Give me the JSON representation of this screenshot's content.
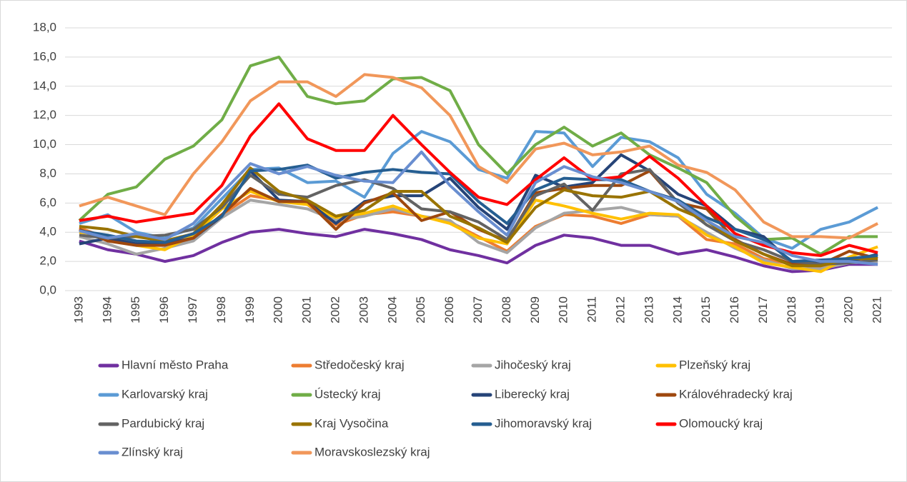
{
  "chart_data": {
    "type": "line",
    "categories": [
      "1993",
      "1994",
      "1995",
      "1996",
      "1997",
      "1998",
      "1999",
      "2000",
      "2001",
      "2002",
      "2003",
      "2004",
      "2005",
      "2006",
      "2007",
      "2008",
      "2009",
      "2010",
      "2011",
      "2012",
      "2013",
      "2014",
      "2015",
      "2016",
      "2017",
      "2018",
      "2019",
      "2020",
      "2021"
    ],
    "ylim": [
      0,
      18
    ],
    "yticks": [
      {
        "value": 0,
        "label": "0,0"
      },
      {
        "value": 2,
        "label": "2,0"
      },
      {
        "value": 4,
        "label": "4,0"
      },
      {
        "value": 6,
        "label": "6,0"
      },
      {
        "value": 8,
        "label": "8,0"
      },
      {
        "value": 10,
        "label": "10,0"
      },
      {
        "value": 12,
        "label": "12,0"
      },
      {
        "value": 14,
        "label": "14,0"
      },
      {
        "value": 16,
        "label": "16,0"
      },
      {
        "value": 18,
        "label": "18,0"
      }
    ],
    "grid": true,
    "legend": "bottom",
    "series": [
      {
        "name": "Hlavní město Praha",
        "color": "#7030a0",
        "values": [
          3.4,
          2.8,
          2.5,
          2.0,
          2.4,
          3.3,
          4.0,
          4.2,
          3.9,
          3.7,
          4.2,
          3.9,
          3.5,
          2.8,
          2.4,
          1.9,
          3.1,
          3.8,
          3.6,
          3.1,
          3.1,
          2.5,
          2.8,
          2.3,
          1.7,
          1.3,
          1.4,
          1.8,
          1.8
        ]
      },
      {
        "name": "Středočeský kraj",
        "color": "#ed7d31",
        "values": [
          4.3,
          3.6,
          3.2,
          3.3,
          3.6,
          5.2,
          6.5,
          6.2,
          5.9,
          4.5,
          5.2,
          5.4,
          5.1,
          4.7,
          3.7,
          2.7,
          4.4,
          5.2,
          5.1,
          4.6,
          5.2,
          5.1,
          3.5,
          3.2,
          2.2,
          1.8,
          1.6,
          2.0,
          2.2
        ]
      },
      {
        "name": "Jihočeský kraj",
        "color": "#a5a5a5",
        "values": [
          3.7,
          3.2,
          2.5,
          2.9,
          3.4,
          5.0,
          6.2,
          5.9,
          5.6,
          4.8,
          5.1,
          5.6,
          5.1,
          4.8,
          3.3,
          2.6,
          4.3,
          5.3,
          5.5,
          5.7,
          5.2,
          5.1,
          4.0,
          2.9,
          2.1,
          1.5,
          1.5,
          1.9,
          2.0
        ]
      },
      {
        "name": "Plzeňský kraj",
        "color": "#ffc000",
        "values": [
          4.0,
          3.8,
          3.1,
          2.8,
          3.8,
          5.6,
          6.8,
          6.1,
          5.9,
          5.0,
          5.3,
          5.8,
          5.1,
          4.6,
          3.6,
          3.2,
          6.2,
          5.8,
          5.3,
          4.9,
          5.3,
          5.2,
          3.8,
          3.0,
          1.9,
          1.6,
          1.3,
          2.3,
          3.0
        ]
      },
      {
        "name": "Karlovarský kraj",
        "color": "#5b9bd5",
        "values": [
          4.6,
          5.2,
          4.0,
          3.6,
          4.3,
          6.3,
          8.3,
          8.4,
          7.4,
          7.5,
          6.4,
          9.4,
          10.9,
          10.2,
          8.3,
          7.7,
          10.9,
          10.8,
          8.5,
          10.5,
          10.2,
          9.1,
          6.6,
          5.3,
          3.6,
          2.9,
          4.2,
          4.7,
          5.7
        ]
      },
      {
        "name": "Ústecký kraj",
        "color": "#70ad47",
        "values": [
          4.8,
          6.6,
          7.1,
          9.0,
          9.9,
          11.7,
          15.4,
          16.0,
          13.3,
          12.8,
          13.0,
          14.5,
          14.6,
          13.7,
          10.0,
          8.0,
          10.0,
          11.2,
          9.9,
          10.8,
          9.3,
          8.4,
          7.4,
          5.1,
          3.5,
          3.6,
          2.5,
          3.7,
          3.7
        ]
      },
      {
        "name": "Liberecký kraj",
        "color": "#264478",
        "values": [
          3.2,
          3.6,
          3.2,
          3.2,
          3.6,
          5.1,
          8.2,
          6.2,
          6.1,
          4.6,
          6.1,
          6.5,
          6.5,
          7.7,
          5.7,
          4.2,
          7.9,
          7.1,
          7.4,
          9.3,
          8.2,
          6.6,
          5.8,
          4.2,
          3.7,
          1.9,
          2.0,
          2.0,
          2.5
        ]
      },
      {
        "name": "Královéhradecký kraj",
        "color": "#9e480e",
        "values": [
          4.2,
          3.4,
          3.1,
          3.1,
          3.6,
          5.2,
          7.0,
          6.1,
          6.1,
          4.2,
          6.0,
          6.7,
          4.8,
          5.4,
          4.2,
          3.4,
          6.7,
          7.0,
          7.2,
          7.2,
          8.2,
          6.0,
          5.6,
          3.5,
          2.5,
          1.8,
          1.8,
          2.7,
          2.2
        ]
      },
      {
        "name": "Pardubický kraj",
        "color": "#636363",
        "values": [
          3.8,
          3.6,
          3.7,
          3.8,
          4.2,
          5.7,
          7.9,
          6.6,
          6.4,
          7.2,
          7.6,
          7.0,
          5.6,
          5.4,
          4.7,
          3.5,
          6.5,
          7.3,
          5.5,
          8.0,
          8.3,
          6.0,
          4.5,
          3.4,
          2.8,
          2.0,
          1.8,
          1.9,
          2.1
        ]
      },
      {
        "name": "Kraj Vysočina",
        "color": "#997300",
        "values": [
          4.4,
          4.2,
          3.7,
          3.4,
          3.9,
          5.9,
          8.4,
          6.8,
          6.2,
          5.1,
          5.5,
          6.8,
          6.8,
          5.1,
          4.3,
          3.3,
          5.7,
          6.9,
          6.5,
          6.4,
          6.8,
          5.6,
          4.8,
          3.4,
          2.5,
          1.7,
          1.7,
          2.2,
          2.2
        ]
      },
      {
        "name": "Jihomoravský kraj",
        "color": "#255e91",
        "values": [
          4.1,
          3.8,
          3.4,
          3.3,
          3.9,
          5.1,
          8.2,
          8.3,
          8.6,
          7.7,
          8.1,
          8.3,
          8.1,
          8.0,
          6.1,
          4.6,
          6.9,
          7.7,
          7.6,
          7.6,
          6.8,
          6.2,
          5.0,
          4.2,
          3.5,
          2.0,
          2.1,
          2.2,
          2.4
        ]
      },
      {
        "name": "Olomoucký kraj",
        "color": "#ff0000",
        "values": [
          4.8,
          5.1,
          4.7,
          5.0,
          5.3,
          7.2,
          10.6,
          12.8,
          10.4,
          9.6,
          9.6,
          12.0,
          10.0,
          8.1,
          6.4,
          5.9,
          7.6,
          9.1,
          7.6,
          7.8,
          9.2,
          7.7,
          5.8,
          3.9,
          3.1,
          2.6,
          2.4,
          3.1,
          2.6
        ]
      },
      {
        "name": "Zlínský kraj",
        "color": "#698ed0",
        "values": [
          4.1,
          3.6,
          3.9,
          3.5,
          4.6,
          6.7,
          8.7,
          8.0,
          8.5,
          7.9,
          7.5,
          7.4,
          9.5,
          7.2,
          5.4,
          3.8,
          7.4,
          8.5,
          7.8,
          7.4,
          6.8,
          6.1,
          4.8,
          3.7,
          3.3,
          2.4,
          2.0,
          2.0,
          1.8
        ]
      },
      {
        "name": "Moravskoslezský kraj",
        "color": "#f1975a",
        "values": [
          5.8,
          6.4,
          5.8,
          5.2,
          8.0,
          10.2,
          13.0,
          14.3,
          14.3,
          13.3,
          14.8,
          14.6,
          13.9,
          12.0,
          8.5,
          7.4,
          9.7,
          10.1,
          9.3,
          9.5,
          9.9,
          8.6,
          8.1,
          6.9,
          4.7,
          3.7,
          3.7,
          3.6,
          4.6
        ]
      }
    ]
  }
}
